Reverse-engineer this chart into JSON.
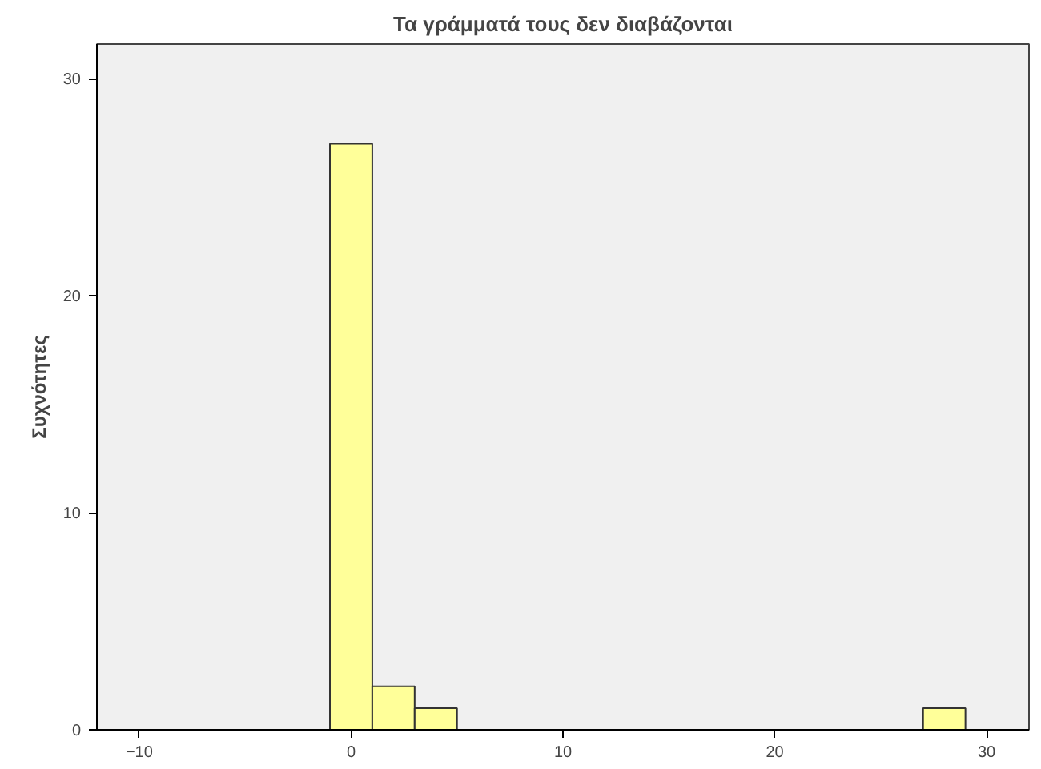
{
  "chart_data": {
    "type": "histogram",
    "title": "Τα γράμματά τους δεν διαβάζονται",
    "ylabel": "Συχνότητες",
    "bins": [
      -1,
      1,
      3,
      5,
      7,
      9,
      11,
      13,
      15,
      17,
      19,
      21,
      23,
      25,
      27,
      29
    ],
    "values": [
      27,
      2,
      1,
      0,
      0,
      0,
      0,
      0,
      0,
      0,
      0,
      0,
      0,
      0,
      1
    ],
    "color": "#ffff99",
    "xlim": [
      -12,
      32
    ],
    "xticks": [
      -10,
      0,
      10,
      20,
      30
    ],
    "ylim": [
      0,
      31.6
    ],
    "yticks": [
      0,
      10,
      20,
      30
    ],
    "grid": false
  }
}
